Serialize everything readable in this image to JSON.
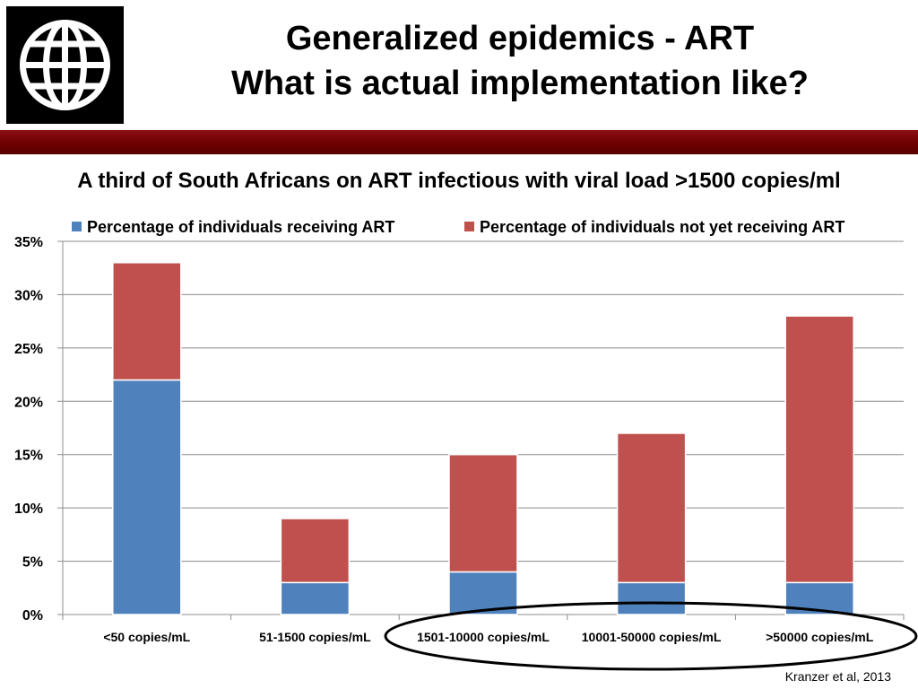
{
  "header": {
    "title_line1": "Generalized epidemics - ART",
    "title_line2": "What is actual implementation like?",
    "logo_icon": "globe-grid-icon"
  },
  "chart_data": {
    "type": "bar",
    "stacked": true,
    "title": "A third of South Africans on ART infectious with viral load >1500 copies/ml",
    "categories": [
      "<50 copies/mL",
      "51-1500 copies/mL",
      "1501-10000 copies/mL",
      "10001-50000 copies/mL",
      ">50000 copies/mL"
    ],
    "series": [
      {
        "name": "Percentage of individuals receiving ART",
        "color": "#4f81bd",
        "values": [
          22,
          3,
          4,
          3,
          3
        ]
      },
      {
        "name": "Percentage of individuals not yet receiving ART",
        "color": "#c0504d",
        "values": [
          11,
          6,
          11,
          14,
          25
        ]
      }
    ],
    "y_ticks": [
      "0%",
      "5%",
      "10%",
      "15%",
      "20%",
      "25%",
      "30%",
      "35%"
    ],
    "ylim": [
      0,
      35
    ],
    "grid": true,
    "legend_position": "top",
    "highlight": {
      "shape": "ellipse",
      "categories": [
        "1501-10000 copies/mL",
        "10001-50000 copies/mL",
        ">50000 copies/mL"
      ]
    }
  },
  "footer": {
    "source": "Kranzer et al, 2013"
  },
  "colors": {
    "band": "#7a0000",
    "receiving": "#4f81bd",
    "not_receiving": "#c0504d"
  }
}
